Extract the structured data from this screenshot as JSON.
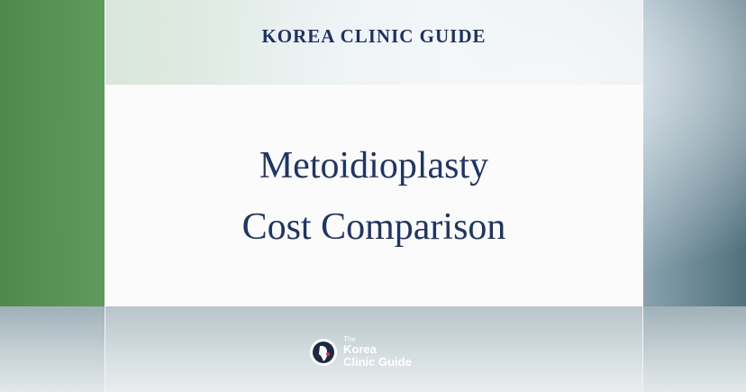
{
  "header": {
    "title": "KOREA CLINIC GUIDE"
  },
  "headline": {
    "lines": [
      "Metoidioplasty",
      "Cost Comparison"
    ]
  },
  "logo": {
    "small": "The",
    "lines": [
      "Korea",
      "Clinic Guide"
    ]
  }
}
